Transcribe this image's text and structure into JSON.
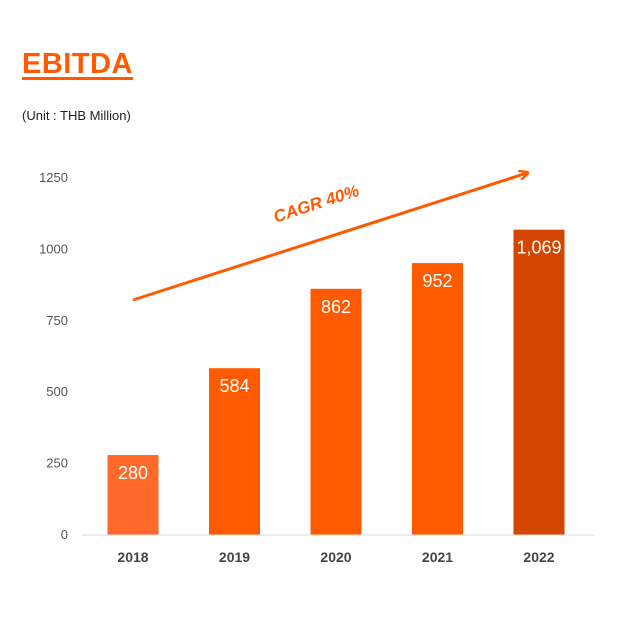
{
  "title": "EBITDA",
  "unit": "(Unit : THB Million)",
  "colors": {
    "accent": "#ff5a00",
    "bars": [
      "#ff6a2a",
      "#ff5a00",
      "#ff5a00",
      "#ff5a00",
      "#d24600"
    ]
  },
  "chart_data": {
    "type": "bar",
    "categories": [
      "2018",
      "2019",
      "2020",
      "2021",
      "2022"
    ],
    "values": [
      280,
      584,
      862,
      952,
      1069
    ],
    "data_labels": [
      "280",
      "584",
      "862",
      "952",
      "1,069"
    ],
    "yticks": [
      "0",
      "250",
      "500",
      "750",
      "1000",
      "1250"
    ],
    "ylim": [
      0,
      1250
    ],
    "grid": false,
    "annotation": "CAGR 40%"
  }
}
